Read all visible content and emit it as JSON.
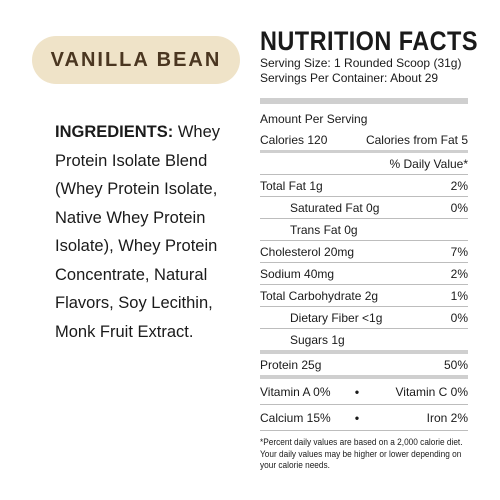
{
  "flavor": "VANILLA BEAN",
  "ingredients": {
    "label": "INGREDIENTS:",
    "text": " Whey Protein Isolate Blend (Whey Protein Isolate, Native Whey Protein Isolate), Whey Protein Concentrate, Natural Flavors, Soy Lecithin, Monk Fruit Extract."
  },
  "facts": {
    "title": "NUTRITION FACTS",
    "serving_size": "Serving Size: 1 Rounded Scoop (31g)",
    "servings_per_container": "Servings Per Container: About 29",
    "amount_per_serving": "Amount Per Serving",
    "calories": "Calories 120",
    "calories_from_fat": "Calories from Fat 5",
    "daily_value_header": "% Daily Value*",
    "rows": {
      "total_fat": {
        "label": "Total Fat 1g",
        "dv": "2%"
      },
      "saturated_fat": {
        "label": "Saturated Fat 0g",
        "dv": "0%"
      },
      "trans_fat": {
        "label": "Trans Fat 0g",
        "dv": ""
      },
      "cholesterol": {
        "label": "Cholesterol 20mg",
        "dv": "7%"
      },
      "sodium": {
        "label": "Sodium 40mg",
        "dv": "2%"
      },
      "total_carbohydrate": {
        "label": "Total Carbohydrate 2g",
        "dv": "1%"
      },
      "dietary_fiber": {
        "label": "Dietary Fiber <1g",
        "dv": "0%"
      },
      "sugars": {
        "label": "Sugars 1g",
        "dv": ""
      },
      "protein": {
        "label": "Protein 25g",
        "dv": "50%"
      }
    },
    "vitamins": [
      {
        "left": "Vitamin A 0%",
        "sep": "•",
        "right": "Vitamin C 0%"
      },
      {
        "left": "Calcium 15%",
        "sep": "•",
        "right": "Iron 2%"
      }
    ],
    "footnote": "*Percent daily values are based on a 2,000 calorie diet. Your daily values may be higher or lower depending on your calorie needs."
  }
}
